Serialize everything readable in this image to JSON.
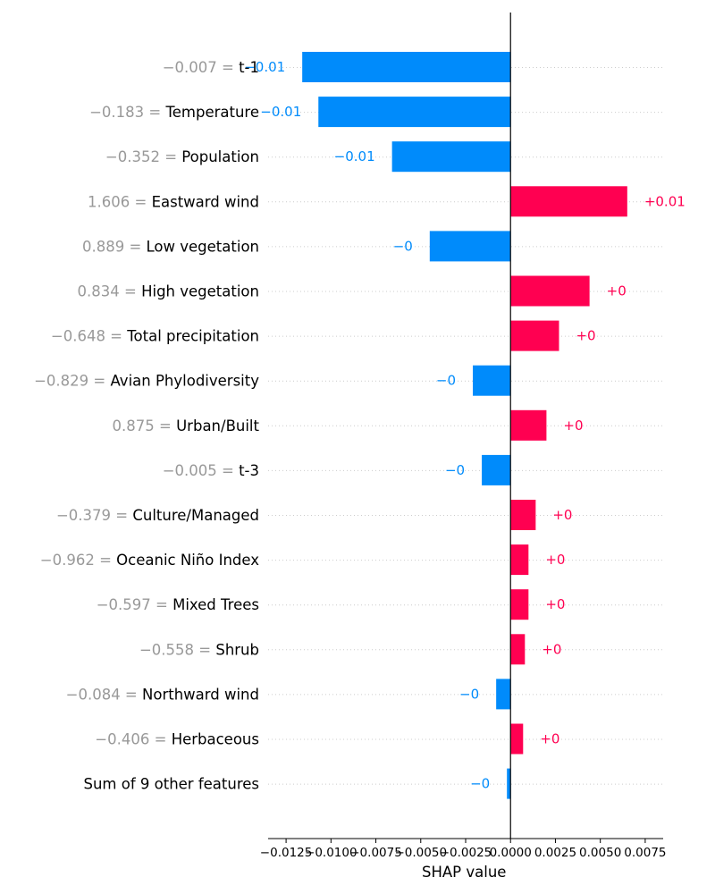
{
  "chart_data": {
    "type": "bar",
    "orientation": "horizontal",
    "xlabel": "SHAP value",
    "xlim": [
      -0.0135,
      0.0085
    ],
    "xticks": [
      "−0.0125",
      "−0.0100",
      "−0.0075",
      "−0.0050",
      "−0.0025",
      "0.0000",
      "0.0025",
      "0.0050",
      "0.0075"
    ],
    "xtick_values": [
      -0.0125,
      -0.01,
      -0.0075,
      -0.005,
      -0.0025,
      0,
      0.0025,
      0.005,
      0.0075
    ],
    "colors": {
      "positive": "#ff0051",
      "negative": "#008bfb",
      "feature_value": "#999999",
      "label": "#000000"
    },
    "features": [
      {
        "value": "−0.007",
        "name": "t-1",
        "shap": -0.0116,
        "label": "−0.01"
      },
      {
        "value": "−0.183",
        "name": "Temperature",
        "shap": -0.0107,
        "label": "−0.01"
      },
      {
        "value": "−0.352",
        "name": "Population",
        "shap": -0.0066,
        "label": "−0.01"
      },
      {
        "value": "1.606",
        "name": "Eastward wind",
        "shap": 0.0065,
        "label": "+0.01"
      },
      {
        "value": "0.889",
        "name": "Low vegetation",
        "shap": -0.0045,
        "label": "−0"
      },
      {
        "value": "0.834",
        "name": "High vegetation",
        "shap": 0.0044,
        "label": "+0"
      },
      {
        "value": "−0.648",
        "name": "Total precipitation",
        "shap": 0.0027,
        "label": "+0"
      },
      {
        "value": "−0.829",
        "name": "Avian Phylodiversity",
        "shap": -0.0021,
        "label": "−0"
      },
      {
        "value": "0.875",
        "name": "Urban/Built",
        "shap": 0.002,
        "label": "+0"
      },
      {
        "value": "−0.005",
        "name": "t-3",
        "shap": -0.0016,
        "label": "−0"
      },
      {
        "value": "−0.379",
        "name": "Culture/Managed",
        "shap": 0.0014,
        "label": "+0"
      },
      {
        "value": "−0.962",
        "name": "Oceanic Niño Index",
        "shap": 0.001,
        "label": "+0"
      },
      {
        "value": "−0.597",
        "name": "Mixed Trees",
        "shap": 0.001,
        "label": "+0"
      },
      {
        "value": "−0.558",
        "name": "Shrub",
        "shap": 0.0008,
        "label": "+0"
      },
      {
        "value": "−0.084",
        "name": "Northward wind",
        "shap": -0.0008,
        "label": "−0"
      },
      {
        "value": "−0.406",
        "name": "Herbaceous",
        "shap": 0.0007,
        "label": "+0"
      },
      {
        "value": "",
        "name": "Sum of 9 other features",
        "shap": -0.0002,
        "label": "−0"
      }
    ]
  }
}
